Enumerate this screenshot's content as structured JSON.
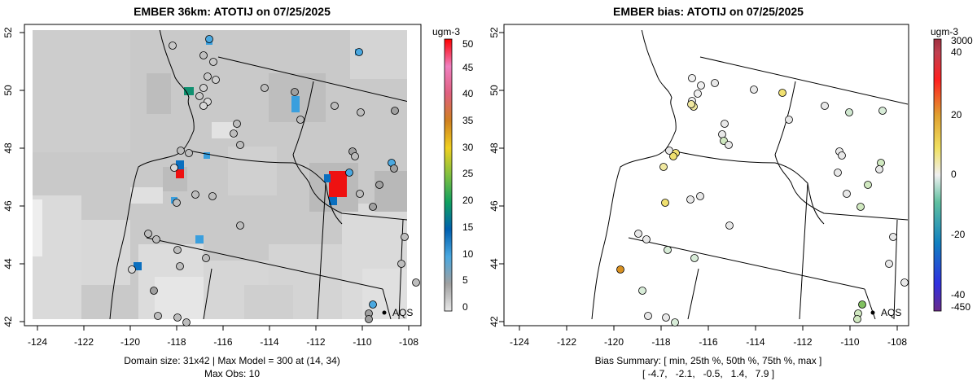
{
  "left": {
    "title": "EMBER 36km: ATOTIJ on 07/25/2025",
    "caption1": "Domain size: 31x42 | Max Model = 300 at (14, 34)",
    "caption2": "Max Obs: 10",
    "legend_unit": "ugm-3",
    "legend_ticks": [
      "0",
      "5",
      "10",
      "15",
      "20",
      "25",
      "30",
      "35",
      "40",
      "45",
      "50"
    ],
    "aqs_label": "AQS"
  },
  "right": {
    "title": "EMBER bias: ATOTIJ on 07/25/2025",
    "caption1": "Bias Summary: [ min, 25th %, 50th %, 75th %, max ]",
    "caption2": "[ -4.7,   -2.1,   -0.5,   1.4,   7.9 ]",
    "legend_unit": "ugm-3",
    "legend_ticks": [
      "3000",
      "40",
      "20",
      "0",
      "-20",
      "-40",
      "-450"
    ],
    "aqs_label": "AQS"
  },
  "axes": {
    "x_ticks": [
      "-124",
      "-122",
      "-120",
      "-118",
      "-116",
      "-114",
      "-112",
      "-110",
      "-108"
    ],
    "y_ticks": [
      "42",
      "44",
      "46",
      "48",
      "50",
      "52"
    ]
  },
  "colors": {
    "grid_light": "#dcdcdc",
    "grid_mid": "#c6c6c6",
    "highlight_red": "#ee1111",
    "highlight_blue": "#2f8fd0",
    "highlight_green": "#109070"
  }
}
